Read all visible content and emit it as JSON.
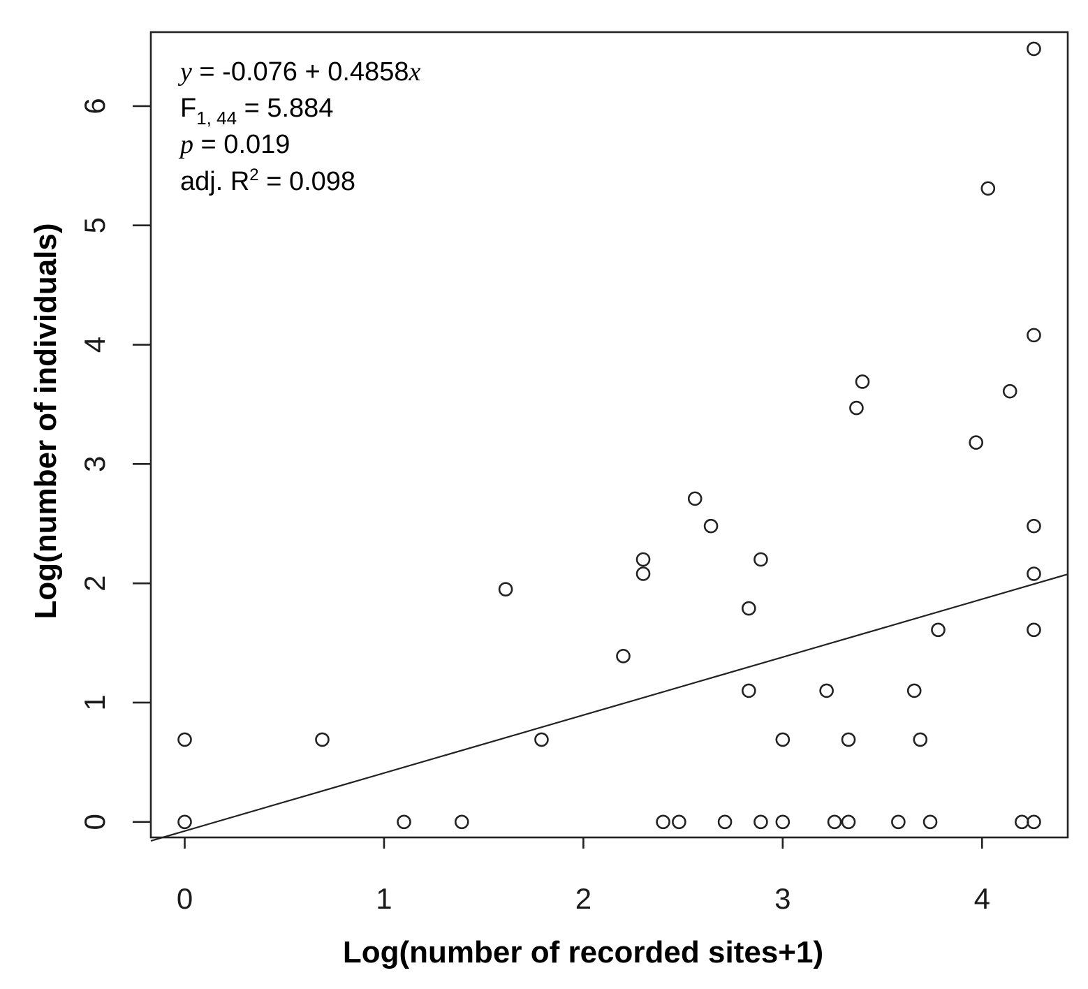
{
  "chart_data": {
    "type": "scatter",
    "title": "",
    "xlabel": "Log(number of recorded sites+1)",
    "ylabel": "Log(number of individuals)",
    "xlim": [
      -0.17,
      4.43
    ],
    "ylim": [
      -0.13,
      6.62
    ],
    "xticks": [
      0,
      1,
      2,
      3,
      4
    ],
    "yticks": [
      0,
      1,
      2,
      3,
      4,
      5,
      6
    ],
    "xtick_labels": [
      "0",
      "1",
      "2",
      "3",
      "4"
    ],
    "ytick_labels": [
      "0",
      "1",
      "2",
      "3",
      "4",
      "5",
      "6"
    ],
    "grid": false,
    "regression": {
      "intercept": -0.076,
      "slope": 0.4858
    },
    "annotations": {
      "equation": {
        "y_symbol": "y",
        "text": " = -0.076 + 0.4858",
        "x_symbol": "x"
      },
      "f_stat": {
        "prefix": "F",
        "subscript": "1, 44",
        "value": " = 5.884"
      },
      "p_value": {
        "symbol": "p",
        "value": " = 0.019"
      },
      "r_squared": {
        "prefix": "adj. R",
        "superscript": "2",
        "value": " = 0.098"
      }
    },
    "series": [
      {
        "points": [
          [
            0,
            0.69
          ],
          [
            0,
            0
          ],
          [
            0.69,
            0.69
          ],
          [
            1.1,
            0
          ],
          [
            1.39,
            0
          ],
          [
            1.61,
            1.95
          ],
          [
            1.79,
            0.69
          ],
          [
            2.2,
            1.39
          ],
          [
            2.3,
            2.2
          ],
          [
            2.3,
            2.08
          ],
          [
            2.4,
            0
          ],
          [
            2.48,
            0
          ],
          [
            2.56,
            2.71
          ],
          [
            2.64,
            2.48
          ],
          [
            2.71,
            0
          ],
          [
            2.83,
            1.79
          ],
          [
            2.83,
            1.1
          ],
          [
            2.89,
            2.2
          ],
          [
            2.89,
            0
          ],
          [
            3.0,
            0.69
          ],
          [
            3.0,
            0
          ],
          [
            3.22,
            1.1
          ],
          [
            3.26,
            0
          ],
          [
            3.33,
            0.69
          ],
          [
            3.33,
            0
          ],
          [
            3.37,
            3.47
          ],
          [
            3.4,
            3.69
          ],
          [
            3.58,
            0
          ],
          [
            3.66,
            1.1
          ],
          [
            3.69,
            0.69
          ],
          [
            3.74,
            0
          ],
          [
            3.78,
            1.61
          ],
          [
            3.97,
            3.18
          ],
          [
            4.03,
            5.31
          ],
          [
            4.14,
            3.61
          ],
          [
            4.2,
            0
          ],
          [
            4.26,
            6.48
          ],
          [
            4.26,
            4.08
          ],
          [
            4.26,
            2.48
          ],
          [
            4.26,
            2.08
          ],
          [
            4.26,
            1.61
          ],
          [
            4.26,
            0
          ]
        ]
      }
    ]
  }
}
